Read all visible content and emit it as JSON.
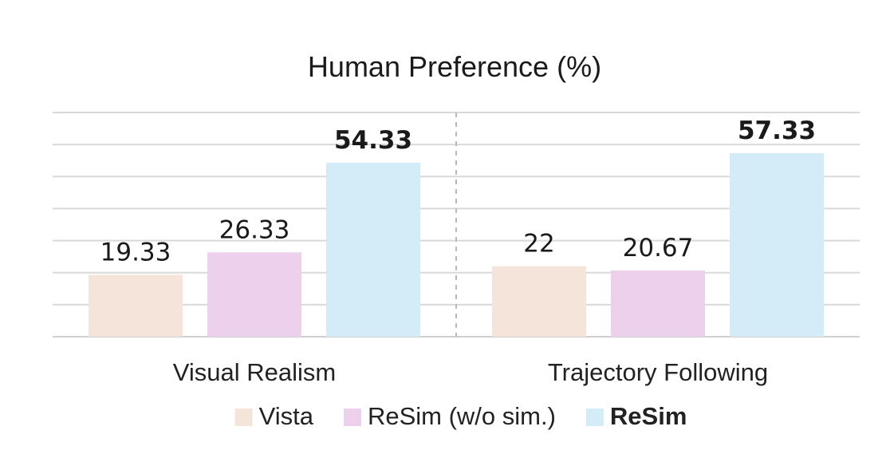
{
  "chart_data": {
    "type": "bar",
    "title": "Human Preference (%)",
    "categories": [
      "Visual Realism",
      "Trajectory Following"
    ],
    "series": [
      {
        "name": "Vista",
        "values": [
          19.33,
          22
        ],
        "color": "#f5e4da",
        "label_bold": false
      },
      {
        "name": "ReSim (w/o sim.)",
        "values": [
          26.33,
          20.67
        ],
        "color": "#edd0ec",
        "label_bold": false
      },
      {
        "name": "ReSim",
        "values": [
          54.33,
          57.33
        ],
        "color": "#d3ecf8",
        "label_bold": true
      }
    ],
    "ylim": [
      0,
      70
    ],
    "grid": true,
    "gridline_color": "#d9d9d9",
    "group_separator": "dashed",
    "legend_position": "bottom"
  }
}
